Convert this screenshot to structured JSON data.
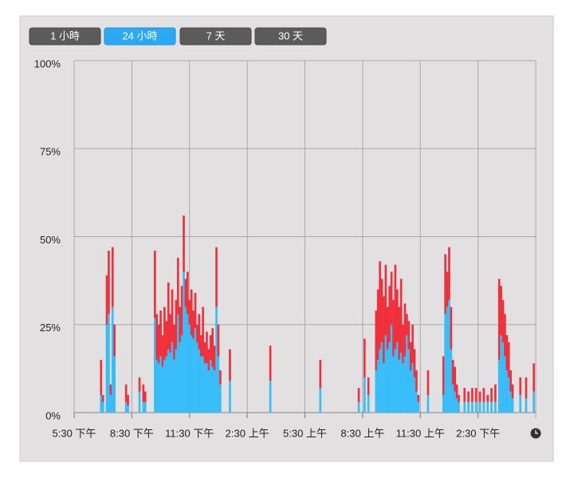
{
  "tabs": [
    "1 小時",
    "24 小時",
    "7 天",
    "30 天"
  ],
  "selected_tab": 1,
  "chart_data": {
    "type": "stacked-bar",
    "x": [
      1.4,
      1.5,
      1.7,
      1.8,
      1.9,
      2.0,
      2.1,
      2.7,
      2.8,
      3.4,
      3.6,
      3.7,
      4.2,
      4.3,
      4.4,
      4.5,
      4.6,
      4.7,
      4.8,
      4.9,
      5.0,
      5.1,
      5.2,
      5.3,
      5.4,
      5.5,
      5.6,
      5.7,
      5.8,
      5.9,
      6.0,
      6.1,
      6.2,
      6.3,
      6.4,
      6.5,
      6.6,
      6.7,
      6.8,
      6.9,
      7.0,
      7.1,
      7.2,
      7.3,
      7.4,
      7.5,
      7.6,
      8.1,
      10.2,
      12.8,
      14.8,
      15.1,
      15.3,
      15.7,
      15.8,
      15.9,
      16.0,
      16.1,
      16.2,
      16.3,
      16.4,
      16.5,
      16.6,
      16.7,
      16.8,
      16.9,
      17.0,
      17.1,
      17.2,
      17.3,
      17.4,
      17.5,
      17.6,
      17.7,
      17.8,
      17.9,
      18.4,
      19.2,
      19.3,
      19.4,
      19.5,
      19.6,
      19.7,
      19.8,
      19.9,
      20.0,
      20.3,
      20.5,
      20.7,
      20.9,
      21.1,
      21.3,
      21.5,
      21.7,
      21.9,
      22.1,
      22.2,
      22.3,
      22.4,
      22.5,
      22.6,
      22.7,
      22.8,
      23.2,
      23.5,
      23.9
    ],
    "series": [
      {
        "color": "#38bdf8",
        "values": [
          5,
          3,
          25,
          28,
          5,
          30,
          16,
          3,
          2,
          6,
          3,
          3,
          27,
          15,
          14,
          16,
          13,
          15,
          16,
          18,
          17,
          20,
          15,
          18,
          28,
          20,
          22,
          40,
          30,
          28,
          25,
          22,
          21,
          24,
          20,
          18,
          16,
          16,
          14,
          14,
          12,
          15,
          13,
          12,
          30,
          16,
          8,
          9,
          9,
          7,
          3,
          10,
          5,
          12,
          15,
          18,
          20,
          14,
          22,
          18,
          20,
          25,
          16,
          18,
          20,
          15,
          17,
          14,
          16,
          22,
          18,
          12,
          14,
          10,
          6,
          3,
          5,
          5,
          28,
          30,
          32,
          18,
          8,
          6,
          4,
          3,
          3,
          3,
          3,
          3,
          3,
          3,
          3,
          3,
          3,
          15,
          22,
          20,
          16,
          12,
          10,
          6,
          4,
          5,
          4,
          6
        ]
      },
      {
        "color": "#f0303a",
        "values": [
          10,
          2,
          14,
          18,
          3,
          17,
          9,
          5,
          3,
          4,
          5,
          3,
          19,
          13,
          11,
          13,
          9,
          15,
          10,
          19,
          11,
          15,
          10,
          14,
          16,
          10,
          14,
          16,
          8,
          12,
          7,
          13,
          8,
          10,
          5,
          10,
          6,
          14,
          6,
          9,
          6,
          7,
          11,
          7,
          17,
          9,
          4,
          9,
          10,
          8,
          4,
          11,
          5,
          17,
          20,
          25,
          18,
          19,
          20,
          12,
          16,
          15,
          16,
          24,
          15,
          15,
          21,
          11,
          15,
          6,
          8,
          8,
          11,
          8,
          6,
          2,
          7,
          11,
          17,
          10,
          15,
          12,
          7,
          7,
          4,
          2,
          4,
          3,
          4,
          4,
          3,
          4,
          2,
          4,
          5,
          23,
          14,
          12,
          12,
          10,
          10,
          6,
          4,
          5,
          6,
          8
        ]
      }
    ],
    "xlim": [
      0,
      24
    ],
    "xticks": [
      {
        "value": 0,
        "label": "5:30 下午"
      },
      {
        "value": 3,
        "label": "8:30 下午"
      },
      {
        "value": 6,
        "label": "11:30 下午"
      },
      {
        "value": 9,
        "label": "2:30 上午"
      },
      {
        "value": 12,
        "label": "5:30 上午"
      },
      {
        "value": 15,
        "label": "8:30 上午"
      },
      {
        "value": 18,
        "label": "11:30 上午"
      },
      {
        "value": 21,
        "label": "2:30 下午"
      }
    ],
    "ylim": [
      0,
      100
    ],
    "yticks": [
      {
        "value": 0,
        "label": "0%"
      },
      {
        "value": 25,
        "label": "25%"
      },
      {
        "value": 50,
        "label": "50%"
      },
      {
        "value": 75,
        "label": "75%"
      },
      {
        "value": 100,
        "label": "100%"
      }
    ],
    "grid": true
  }
}
